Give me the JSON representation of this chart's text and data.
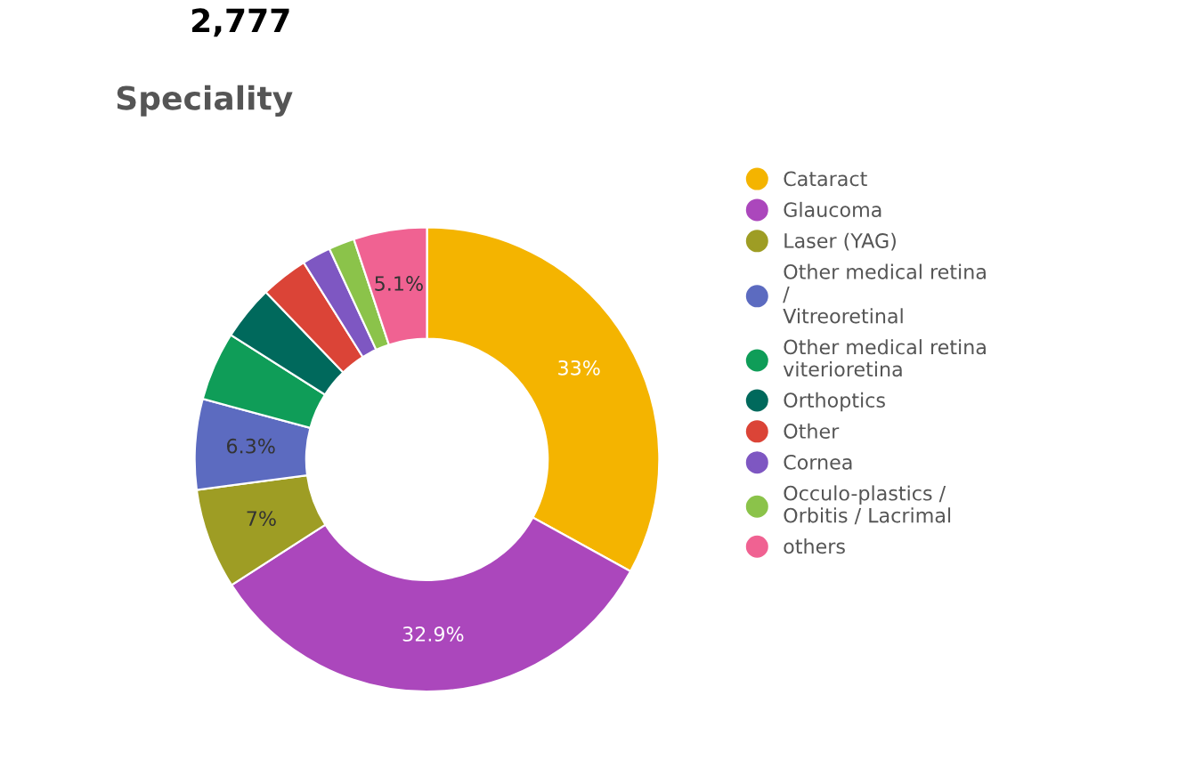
{
  "chart_data": {
    "type": "donut",
    "title": "Speciality",
    "annotations": [
      "2,777"
    ],
    "categories": [
      "Cataract",
      "Glaucoma",
      "Laser (YAG)",
      "Other medical retina / Vitreoretinal",
      "Other medical retina viterioretina",
      "Orthoptics",
      "Other",
      "Cornea",
      "Occulo-plastics / Orbitis / Lacrimal",
      "others"
    ],
    "values": [
      33,
      32.9,
      7,
      6.3,
      4.8,
      3.8,
      3.3,
      2.0,
      1.8,
      5.1
    ],
    "value_labels": [
      "33%",
      "32.9%",
      "7%",
      "6.3%",
      null,
      null,
      null,
      null,
      null,
      "5.1%"
    ],
    "colors": [
      "#f4b400",
      "#ab47bc",
      "#9e9d24",
      "#5c6bc0",
      "#0f9d58",
      "#00695c",
      "#db4437",
      "#7e57c2",
      "#8bc34a",
      "#f06292"
    ],
    "legend": "right"
  }
}
